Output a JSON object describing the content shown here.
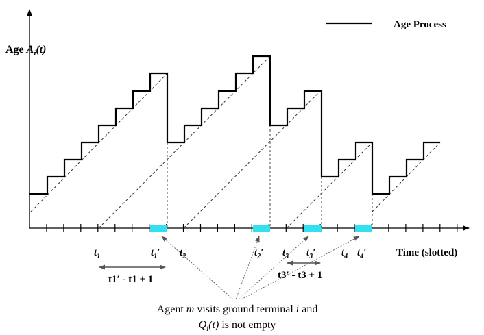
{
  "legend": {
    "label": "Age Process"
  },
  "y_axis": {
    "label_prefix": "Age ",
    "label_var": "A",
    "label_sub": "i",
    "label_suffix": "(t)"
  },
  "x_axis": {
    "label": "Time (slotted)"
  },
  "time_labels": {
    "t1": {
      "base": "t",
      "sub": "1",
      "prime": ""
    },
    "t1p": {
      "base": "t",
      "sub": "1",
      "prime": "′"
    },
    "t2": {
      "base": "t",
      "sub": "2",
      "prime": ""
    },
    "t2p": {
      "base": "t",
      "sub": "2",
      "prime": "′"
    },
    "t3": {
      "base": "t",
      "sub": "3",
      "prime": ""
    },
    "t3p": {
      "base": "t",
      "sub": "3",
      "prime": "′"
    },
    "t4": {
      "base": "t",
      "sub": "4",
      "prime": ""
    },
    "t4p": {
      "base": "t",
      "sub": "4",
      "prime": "′"
    }
  },
  "intervals": {
    "first": "t1′ - t1 + 1",
    "second": "t3′ - t3 + 1"
  },
  "annotation": {
    "line1_a": "Agent ",
    "line1_m": "m",
    "line1_b": " visits ground terminal ",
    "line1_i": "i",
    "line1_c": " and",
    "line2_q": "Q",
    "line2_sub": "i",
    "line2_t": "(t)",
    "line2_rest": " is not empty"
  },
  "colors": {
    "visit_marker": "#33e0f0",
    "age_line": "#000000",
    "dashed": "#333333"
  }
}
